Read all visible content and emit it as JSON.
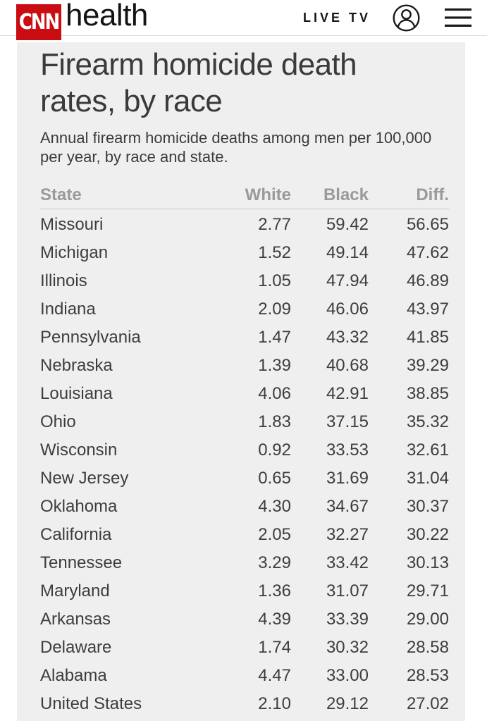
{
  "header": {
    "logo_text": "CNN",
    "section": "health",
    "live_tv_label": "LIVE TV"
  },
  "article": {
    "title": "Firearm homicide death rates, by race",
    "title_lines": [
      "Firearm homicide death",
      "rates, by race"
    ],
    "subtitle": "Annual firearm homicide deaths among men per 100,000 per year, by race and state.",
    "subtitle_lines": [
      "Annual firearm homicide deaths among men per 100,000",
      "per year, by race and state."
    ]
  },
  "chart_data": {
    "type": "table",
    "title": "Firearm homicide death rates, by race",
    "columns": [
      "State",
      "White",
      "Black",
      "Diff."
    ],
    "rows": [
      {
        "state": "Missouri",
        "white": "2.77",
        "black": "59.42",
        "diff": "56.65"
      },
      {
        "state": "Michigan",
        "white": "1.52",
        "black": "49.14",
        "diff": "47.62"
      },
      {
        "state": "Illinois",
        "white": "1.05",
        "black": "47.94",
        "diff": "46.89"
      },
      {
        "state": "Indiana",
        "white": "2.09",
        "black": "46.06",
        "diff": "43.97"
      },
      {
        "state": "Pennsylvania",
        "white": "1.47",
        "black": "43.32",
        "diff": "41.85"
      },
      {
        "state": "Nebraska",
        "white": "1.39",
        "black": "40.68",
        "diff": "39.29"
      },
      {
        "state": "Louisiana",
        "white": "4.06",
        "black": "42.91",
        "diff": "38.85"
      },
      {
        "state": "Ohio",
        "white": "1.83",
        "black": "37.15",
        "diff": "35.32"
      },
      {
        "state": "Wisconsin",
        "white": "0.92",
        "black": "33.53",
        "diff": "32.61"
      },
      {
        "state": "New Jersey",
        "white": "0.65",
        "black": "31.69",
        "diff": "31.04"
      },
      {
        "state": "Oklahoma",
        "white": "4.30",
        "black": "34.67",
        "diff": "30.37"
      },
      {
        "state": "California",
        "white": "2.05",
        "black": "32.27",
        "diff": "30.22"
      },
      {
        "state": "Tennessee",
        "white": "3.29",
        "black": "33.42",
        "diff": "30.13"
      },
      {
        "state": "Maryland",
        "white": "1.36",
        "black": "31.07",
        "diff": "29.71"
      },
      {
        "state": "Arkansas",
        "white": "4.39",
        "black": "33.39",
        "diff": "29.00"
      },
      {
        "state": "Delaware",
        "white": "1.74",
        "black": "30.32",
        "diff": "28.58"
      },
      {
        "state": "Alabama",
        "white": "4.47",
        "black": "33.00",
        "diff": "28.53"
      },
      {
        "state": "United States",
        "white": "2.10",
        "black": "29.12",
        "diff": "27.02"
      }
    ]
  },
  "colors": {
    "cnn_red": "#c90d12",
    "panel_bg": "#efefef",
    "text_dark": "#3d3d3d",
    "column_header_gray": "#9a9a9a"
  }
}
